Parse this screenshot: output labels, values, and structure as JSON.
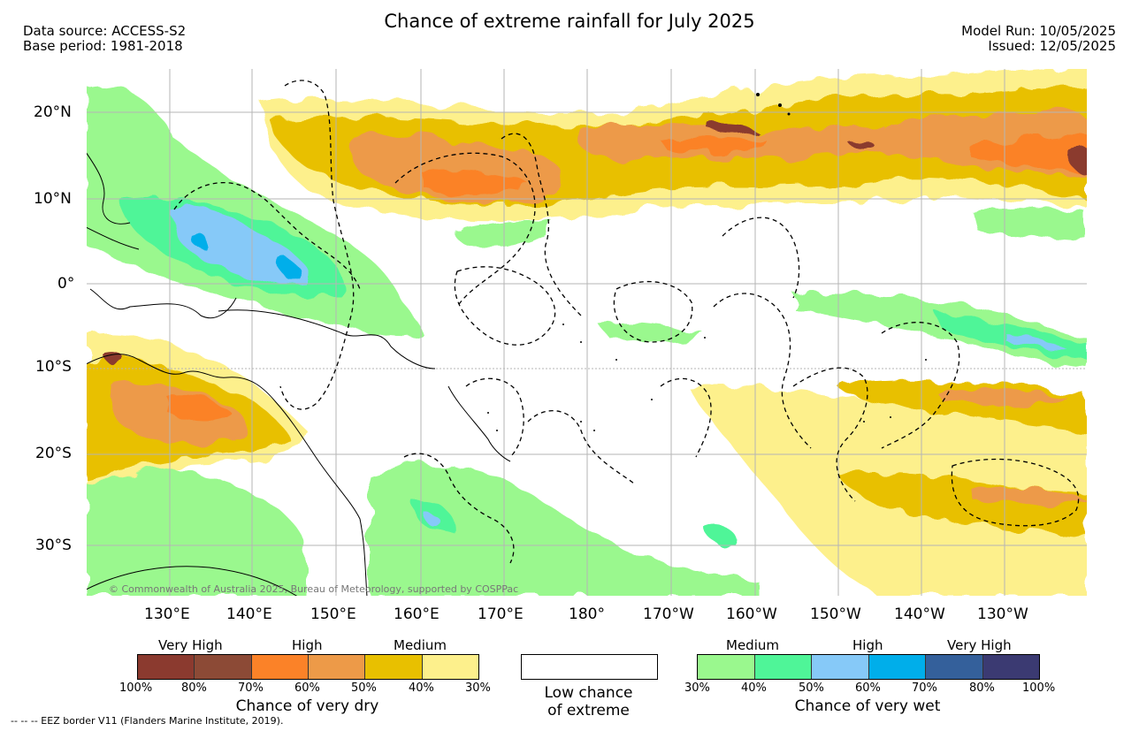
{
  "header": {
    "title": "Chance of extreme rainfall for July 2025",
    "source_line": "Data source: ACCESS-S2",
    "base_line": "Base period: 1981-2018",
    "model_run": "Model Run: 10/05/2025",
    "issued": "Issued: 12/05/2025"
  },
  "map": {
    "lat_labels": [
      "20°N",
      "10°N",
      "0°",
      "10°S",
      "20°S",
      "30°S"
    ],
    "lon_labels": [
      "130°E",
      "140°E",
      "150°E",
      "160°E",
      "170°E",
      "180°",
      "170°W",
      "160°W",
      "150°W",
      "140°W",
      "130°W"
    ],
    "copyright": "© Commonwealth of Australia 2025, Bureau of Meteorology, supported by COSPPac"
  },
  "legend": {
    "dry": {
      "levels": [
        "Very High",
        "High",
        "Medium"
      ],
      "ticks": [
        "100%",
        "80%",
        "70%",
        "60%",
        "50%",
        "40%",
        "30%"
      ],
      "colors": [
        "#8b3a2f",
        "#8c4a36",
        "#fb8228",
        "#ed9a48",
        "#e8c000",
        "#fdf08c"
      ],
      "caption": "Chance of very dry"
    },
    "low": {
      "line1": "Low chance",
      "line2": "of extreme"
    },
    "wet": {
      "levels": [
        "Medium",
        "High",
        "Very High"
      ],
      "ticks": [
        "30%",
        "40%",
        "50%",
        "60%",
        "70%",
        "80%",
        "100%"
      ],
      "colors": [
        "#9af88e",
        "#4ff598",
        "#86c9f8",
        "#00aeea",
        "#34609b",
        "#3b3a72"
      ],
      "caption": "Chance of very wet"
    }
  },
  "footer": {
    "eez": "-- -- -- EEZ border V11 (Flanders Marine Institute, 2019)."
  }
}
